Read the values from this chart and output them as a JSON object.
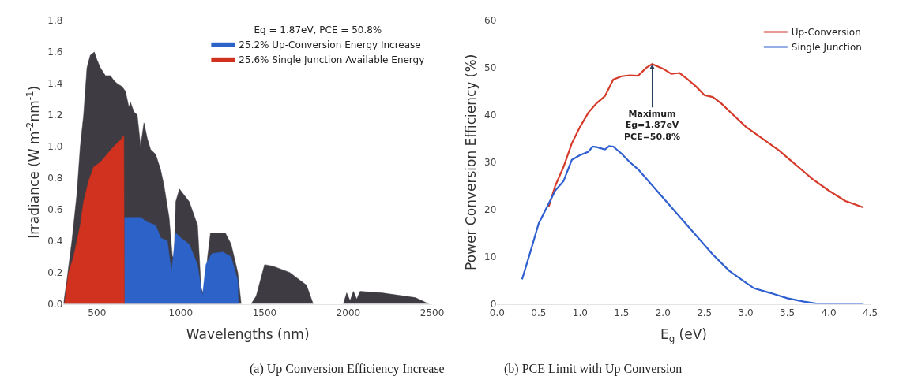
{
  "chart_data": [
    {
      "type": "area",
      "xlabel": "Wavelengths (nm)",
      "ylabel": "Irradiance (W m$^{-2}$nm$^{-1}$)",
      "legend_title": "Eg = 1.87eV, PCE = 50.8%",
      "legend": "top right",
      "xlim": [
        300,
        2500
      ],
      "xticks": [
        500,
        1000,
        1500,
        2000,
        2500
      ],
      "ylim": [
        0,
        1.8
      ],
      "yticks": [
        {
          "value": 0,
          "label": "0.0"
        },
        0.2,
        0.4,
        0.6,
        0.8,
        {
          "value": 1,
          "label": "1.0"
        },
        1.2,
        1.4,
        1.6,
        1.8
      ],
      "series": [
        {
          "color": "#3e3b42",
          "x": [
            300,
            320,
            350,
            380,
            400,
            420,
            440,
            460,
            484,
            500,
            520,
            550,
            580,
            600,
            620,
            650,
            670,
            690,
            700,
            720,
            740,
            760,
            780,
            800,
            820,
            850,
            880,
            900,
            930,
            950,
            960,
            970,
            992,
            1050,
            1100,
            1121,
            1140,
            1160,
            1177,
            1220,
            1266,
            1300,
            1340,
            1360,
            1380,
            1420,
            1450,
            1500,
            1550,
            1650,
            1750,
            1790,
            1880,
            1970,
            1990,
            2010,
            2030,
            2050,
            2070,
            2200,
            2400,
            2480
          ],
          "values": [
            0,
            0.15,
            0.4,
            0.7,
            1.0,
            1.2,
            1.5,
            1.58,
            1.6,
            1.55,
            1.5,
            1.45,
            1.45,
            1.42,
            1.4,
            1.38,
            1.35,
            1.25,
            1.28,
            1.22,
            1.2,
            1.0,
            1.15,
            1.05,
            0.98,
            0.95,
            0.85,
            0.75,
            0.55,
            0.3,
            0.3,
            0.65,
            0.73,
            0.65,
            0.5,
            0.1,
            0.05,
            0.3,
            0.45,
            0.45,
            0.45,
            0.38,
            0.2,
            0,
            null,
            0,
            0.05,
            0.25,
            0.24,
            0.2,
            0.12,
            0,
            null,
            0,
            0.07,
            0.02,
            0.08,
            0.03,
            0.08,
            0.07,
            0.04,
            0
          ]
        },
        {
          "name": "25.2% Up-Conversion Energy Increase",
          "color": "#2d62c8",
          "x": [
            663,
            700,
            760,
            800,
            850,
            880,
            920,
            944,
            970,
            1000,
            1050,
            1100,
            1129,
            1150,
            1185,
            1250,
            1300,
            1340,
            1343
          ],
          "values": [
            0.55,
            0.55,
            0.55,
            0.52,
            0.5,
            0.42,
            0.4,
            0.2,
            0.45,
            0.42,
            0.38,
            0.25,
            0.05,
            0.25,
            0.32,
            0.33,
            0.3,
            0.15,
            0
          ]
        },
        {
          "name": "25.6% Single Junction Available Energy",
          "color": "#d0321f",
          "x": [
            306,
            330,
            360,
            400,
            420,
            450,
            480,
            520,
            560,
            600,
            640,
            660,
            663
          ],
          "values": [
            0,
            0.2,
            0.3,
            0.5,
            0.65,
            0.78,
            0.87,
            0.9,
            0.95,
            1.0,
            1.04,
            1.07,
            0
          ]
        }
      ],
      "annotations": [
        "(a) Up Conversion Efficiency Increase"
      ]
    },
    {
      "type": "line",
      "xlabel": "E$_{g}$ (eV)",
      "ylabel": "Power Conversion Efficiency (%)",
      "legend": "top right",
      "xlim": [
        0,
        4.5
      ],
      "xticks": [
        {
          "value": 0,
          "label": "0.0"
        },
        0.5,
        {
          "value": 1,
          "label": "1.0"
        },
        1.5,
        {
          "value": 2,
          "label": "2.0"
        },
        2.5,
        {
          "value": 3,
          "label": "3.0"
        },
        3.5,
        {
          "value": 4,
          "label": "4.0"
        },
        4.5
      ],
      "ylim": [
        0,
        60
      ],
      "yticks": [
        0,
        10,
        20,
        30,
        40,
        50,
        60
      ],
      "series": [
        {
          "name": "Up-Conversion",
          "color": "#d63a2a",
          "x": [
            0.62,
            0.7,
            0.8,
            0.9,
            1.0,
            1.1,
            1.2,
            1.3,
            1.4,
            1.5,
            1.6,
            1.7,
            1.8,
            1.87,
            2.0,
            2.1,
            2.2,
            2.3,
            2.4,
            2.5,
            2.6,
            2.7,
            2.8,
            3.0,
            3.2,
            3.4,
            3.6,
            3.8,
            4.0,
            4.2,
            4.42
          ],
          "values": [
            20.5,
            25,
            29,
            34,
            37.5,
            40.5,
            42.5,
            44,
            47.5,
            48.2,
            48.4,
            48.3,
            50,
            50.8,
            49.8,
            48.7,
            48.9,
            47.5,
            46,
            44.2,
            43.8,
            42.5,
            40.8,
            37.5,
            35,
            32.5,
            29.5,
            26.5,
            24,
            21.8,
            20.4
          ]
        },
        {
          "name": "Single Junction",
          "color": "#2f5fd0",
          "x": [
            0.3,
            0.4,
            0.5,
            0.6,
            0.7,
            0.8,
            0.9,
            1.0,
            1.1,
            1.15,
            1.2,
            1.3,
            1.35,
            1.4,
            1.5,
            1.6,
            1.7,
            1.8,
            2.0,
            2.2,
            2.4,
            2.6,
            2.8,
            3.0,
            3.1,
            3.3,
            3.5,
            3.7,
            3.85,
            4.0,
            4.42
          ],
          "values": [
            5.2,
            11,
            17,
            20.5,
            24,
            26,
            30.5,
            31.5,
            32.2,
            33.3,
            33.2,
            32.7,
            33.4,
            33.3,
            31.8,
            30,
            28.5,
            26.5,
            22.5,
            18.5,
            14.5,
            10.5,
            7,
            4.5,
            3.3,
            2.3,
            1.2,
            0.5,
            0.1,
            0.1,
            0.1
          ]
        }
      ],
      "annotations": [
        {
          "text": "Maximum\nEg=1.87eV\nPCE=50.8%",
          "x": 1.87,
          "y": 50.8
        },
        "(b) PCE Limit with Up Conversion"
      ]
    }
  ]
}
